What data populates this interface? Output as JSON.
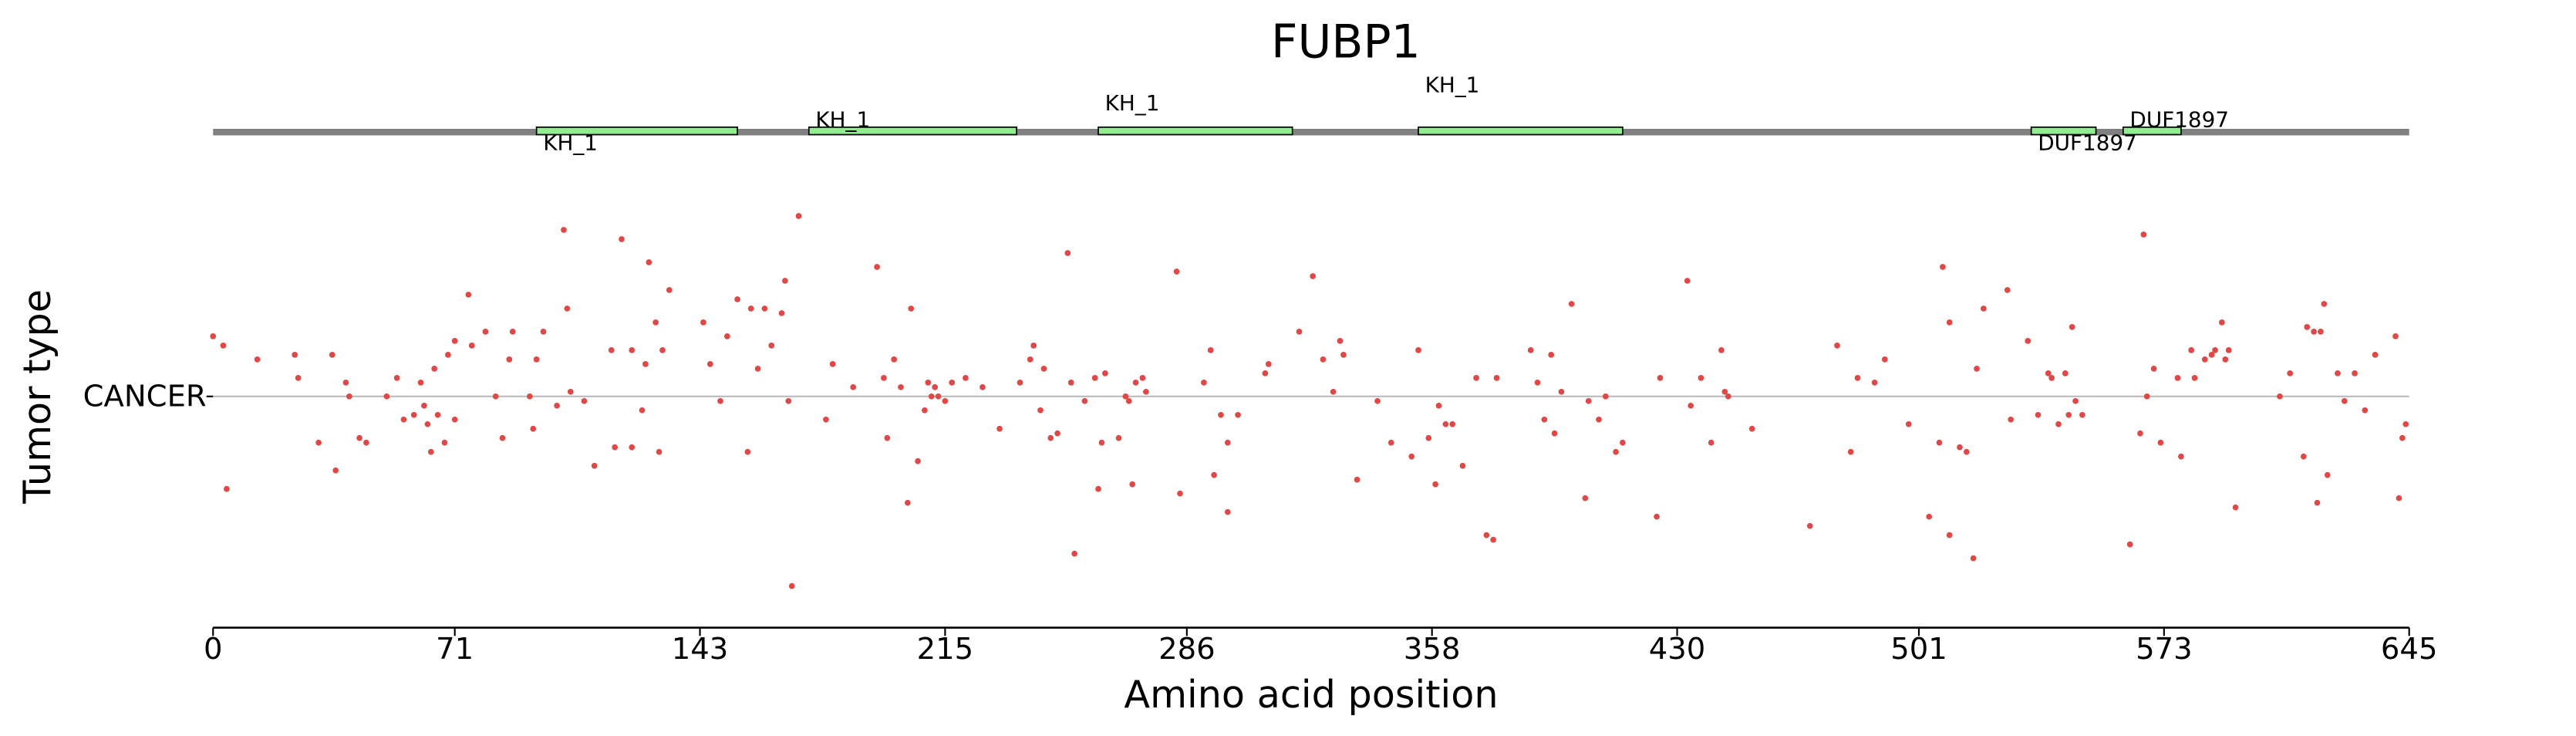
{
  "chart_data": {
    "type": "scatter",
    "title": "FUBP1",
    "xlabel": "Amino acid position",
    "ylabel": "Tumor type",
    "categories": [
      "CANCER"
    ],
    "xlim": [
      0,
      645
    ],
    "xticks": [
      0,
      71,
      143,
      215,
      286,
      358,
      430,
      501,
      573,
      645
    ],
    "ylim": [
      -0.5,
      0.5
    ],
    "color": "#e04848",
    "protein_color": "#808080",
    "domain_color": "#90ee90",
    "domains": [
      {
        "name": "KH_1",
        "start": 95,
        "end": 154
      },
      {
        "name": "KH_1",
        "start": 175,
        "end": 236
      },
      {
        "name": "KH_1",
        "start": 260,
        "end": 317
      },
      {
        "name": "KH_1",
        "start": 354,
        "end": 414
      },
      {
        "name": "DUF1897",
        "start": 534,
        "end": 553
      },
      {
        "name": "DUF1897",
        "start": 561,
        "end": 578
      }
    ],
    "x": [
      0,
      3,
      4,
      13,
      24,
      25,
      31,
      35,
      36,
      39,
      40,
      43,
      45,
      51,
      54,
      56,
      59,
      61,
      62,
      63,
      64,
      65,
      66,
      68,
      69,
      71,
      71,
      75,
      76,
      80,
      83,
      85,
      87,
      88,
      93,
      94,
      95,
      97,
      101,
      103,
      104,
      105,
      109,
      112,
      117,
      118,
      120,
      123,
      123,
      126,
      127,
      128,
      130,
      131,
      132,
      134,
      144,
      146,
      149,
      151,
      154,
      157,
      158,
      160,
      162,
      164,
      167,
      168,
      169,
      170,
      172,
      180,
      182,
      188,
      195,
      197,
      198,
      200,
      202,
      204,
      205,
      207,
      209,
      210,
      211,
      212,
      213,
      215,
      217,
      221,
      226,
      231,
      237,
      240,
      241,
      243,
      244,
      246,
      248,
      251,
      252,
      253,
      256,
      259,
      260,
      261,
      262,
      266,
      268,
      269,
      270,
      271,
      273,
      274,
      283,
      284,
      291,
      293,
      294,
      296,
      298,
      298,
      301,
      309,
      310,
      319,
      323,
      326,
      329,
      331,
      332,
      336,
      342,
      346,
      352,
      354,
      357,
      359,
      360,
      362,
      364,
      367,
      371,
      374,
      376,
      377,
      387,
      389,
      391,
      393,
      394,
      396,
      399,
      403,
      404,
      407,
      409,
      412,
      414,
      424,
      425,
      433,
      434,
      437,
      440,
      443,
      444,
      445,
      452,
      469,
      477,
      481,
      483,
      488,
      491,
      498,
      504,
      507,
      508,
      510,
      510,
      513,
      515,
      517,
      518,
      520,
      527,
      528,
      533,
      536,
      539,
      540,
      542,
      544,
      545,
      546,
      547,
      549,
      563,
      566,
      567,
      568,
      570,
      572,
      577,
      578,
      581,
      582,
      585,
      587,
      588,
      590,
      591,
      592,
      594,
      607,
      610,
      614,
      615,
      617,
      618,
      619,
      620,
      621,
      624,
      626,
      629,
      632,
      635,
      641,
      642,
      643,
      644
    ],
    "values": [
      0.13,
      0.11,
      -0.2,
      0.08,
      0.09,
      0.04,
      -0.1,
      0.09,
      -0.16,
      0.03,
      0,
      -0.09,
      -0.1,
      0,
      0.04,
      -0.05,
      -0.04,
      0.03,
      -0.02,
      -0.06,
      -0.12,
      0.06,
      -0.04,
      -0.1,
      0.09,
      0.12,
      -0.05,
      0.22,
      0.11,
      0.14,
      0,
      -0.09,
      0.08,
      0.14,
      0,
      -0.07,
      0.08,
      0.14,
      -0.02,
      0.36,
      0.19,
      0.01,
      -0.01,
      -0.15,
      0.1,
      -0.11,
      0.34,
      0.1,
      -0.11,
      -0.03,
      0.07,
      0.29,
      0.16,
      -0.12,
      0.1,
      0.23,
      0.16,
      0.07,
      -0.01,
      0.13,
      0.21,
      -0.12,
      0.19,
      0.06,
      0.19,
      0.11,
      0.18,
      0.25,
      -0.01,
      -0.41,
      0.39,
      -0.05,
      0.07,
      0.02,
      0.28,
      0.04,
      -0.09,
      0.08,
      0.02,
      -0.23,
      0.19,
      -0.14,
      -0.03,
      0.03,
      0,
      0.02,
      0,
      -0.01,
      0.03,
      0.04,
      0.02,
      -0.07,
      0.03,
      0.08,
      0.11,
      -0.03,
      0.06,
      -0.09,
      -0.08,
      0.31,
      0.03,
      -0.34,
      -0.01,
      0.04,
      -0.2,
      -0.1,
      0.05,
      -0.09,
      0,
      -0.01,
      -0.19,
      0.03,
      0.04,
      0.01,
      0.27,
      -0.21,
      0.03,
      0.1,
      -0.17,
      -0.04,
      -0.1,
      -0.25,
      -0.04,
      0.05,
      0.07,
      0.14,
      0.26,
      0.08,
      0.01,
      0.12,
      0.09,
      -0.18,
      -0.01,
      -0.1,
      -0.13,
      0.1,
      -0.09,
      -0.19,
      -0.02,
      -0.06,
      -0.06,
      -0.15,
      0.04,
      -0.3,
      -0.31,
      0.04,
      0.1,
      0.03,
      -0.05,
      0.09,
      -0.08,
      0.01,
      0.2,
      -0.22,
      -0.01,
      -0.05,
      0,
      -0.12,
      -0.1,
      -0.26,
      0.04,
      0.25,
      -0.02,
      0.04,
      -0.1,
      0.1,
      0.01,
      0,
      -0.07,
      -0.28,
      0.11,
      -0.12,
      0.04,
      0.03,
      0.08,
      -0.06,
      -0.26,
      -0.1,
      0.28,
      -0.3,
      0.16,
      -0.11,
      -0.12,
      -0.35,
      0.06,
      0.19,
      0.23,
      -0.05,
      0.12,
      -0.04,
      0.05,
      0.04,
      -0.06,
      0.05,
      -0.04,
      0.15,
      -0.01,
      -0.04,
      -0.32,
      -0.08,
      0.35,
      0,
      0.06,
      -0.1,
      0.04,
      -0.13,
      0.1,
      0.04,
      0.08,
      0.09,
      0.1,
      0.16,
      0.08,
      0.1,
      -0.24,
      0,
      0.05,
      -0.13,
      0.15,
      0.14,
      -0.23,
      0.14,
      0.2,
      -0.17,
      0.05,
      -0.01,
      0.05,
      -0.03,
      0.09,
      0.13,
      -0.22,
      -0.09,
      -0.06
    ]
  }
}
